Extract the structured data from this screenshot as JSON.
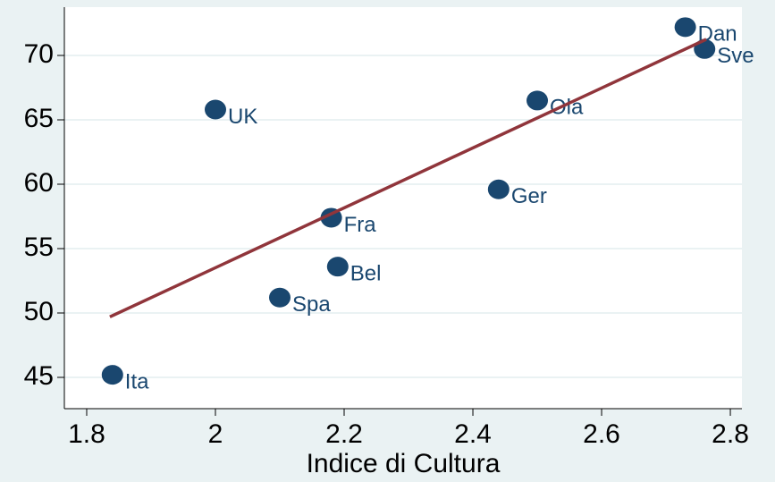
{
  "chart_data": {
    "type": "scatter",
    "xlabel": "Indice di Cultura",
    "labels": [
      "Ita",
      "UK",
      "Spa",
      "Fra",
      "Bel",
      "Ger",
      "Ola",
      "Dan",
      "Sve"
    ],
    "x": [
      1.84,
      2.0,
      2.1,
      2.18,
      2.19,
      2.44,
      2.5,
      2.73,
      2.76
    ],
    "series": [
      {
        "name": "points",
        "color": "#1a476f",
        "values": [
          45.2,
          65.8,
          51.2,
          57.4,
          53.6,
          59.6,
          66.5,
          72.2,
          70.5
        ]
      },
      {
        "name": "fit",
        "color": "#90353b",
        "x": [
          1.836,
          2.7625
        ],
        "values": [
          49.7,
          71.25
        ]
      }
    ],
    "xlim": [
      1.7653,
      2.818
    ],
    "ylim": [
      42.57,
      73.75
    ],
    "xticks": [
      1.8,
      2,
      2.2,
      2.4,
      2.6,
      2.8
    ],
    "yticks": [
      45,
      50,
      55,
      60,
      65,
      70
    ],
    "grid": true
  }
}
